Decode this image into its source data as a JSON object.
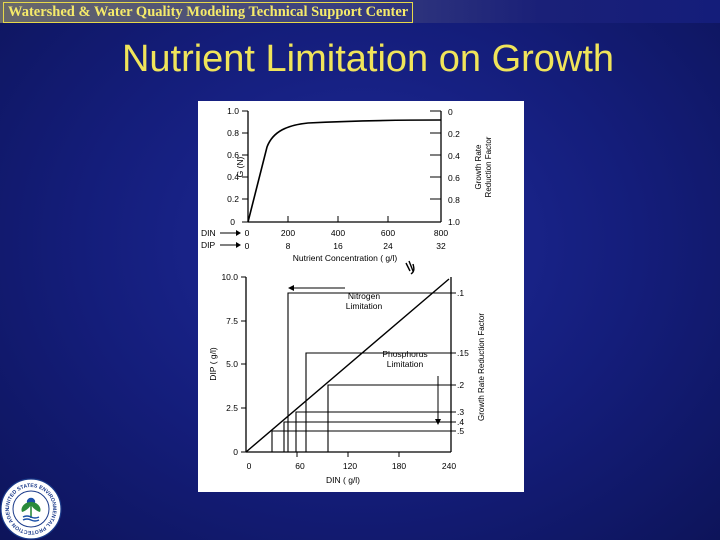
{
  "header": {
    "title": "Watershed & Water Quality Modeling Technical Support Center"
  },
  "slide": {
    "title": "Nutrient Limitation on Growth"
  },
  "colors": {
    "title_text": "#f0e45a",
    "header_border": "#e6d84a",
    "background": "#141d7a",
    "figure_background": "#ffffff"
  },
  "seal": {
    "text": "UNITED STATES ENVIRONMENTAL PROTECTION AGENCY",
    "icon": "epa-seal-icon"
  },
  "top_chart": {
    "left_ticks": [
      "1.0",
      "0.8",
      "0.6",
      "0.4",
      "0.2",
      "0"
    ],
    "left_axis_label": "G (N)",
    "right_ticks": [
      "0",
      "0.2",
      "0.4",
      "0.6",
      "0.8",
      "1.0"
    ],
    "right_axis_label_1": "Growth Rate",
    "right_axis_label_2": "Reduction Factor",
    "din_row_label": "DIN",
    "din_ticks": [
      "0",
      "200",
      "400",
      "600",
      "800"
    ],
    "dip_row_label": "DIP",
    "dip_ticks": [
      "0",
      "8",
      "16",
      "24",
      "32"
    ],
    "x_axis_label": "Nutrient Concentration ( g/l)"
  },
  "bottom_chart": {
    "y_ticks": [
      "10.0",
      "7.5",
      "5.0",
      "2.5",
      "0"
    ],
    "y_axis_label": "DIP ( g/l)",
    "x_ticks": [
      "0",
      "60",
      "120",
      "180",
      "240"
    ],
    "x_axis_label": "DIN ( g/l)",
    "right_ticks": [
      ".1",
      ".15",
      ".2",
      ".3",
      ".4",
      ".5"
    ],
    "right_axis_label": "Growth Rate Reduction Factor",
    "nitrogen_label_1": "Nitrogen",
    "nitrogen_label_2": "Limitation",
    "phosphorus_label_1": "Phosphorus",
    "phosphorus_label_2": "Limitation"
  }
}
